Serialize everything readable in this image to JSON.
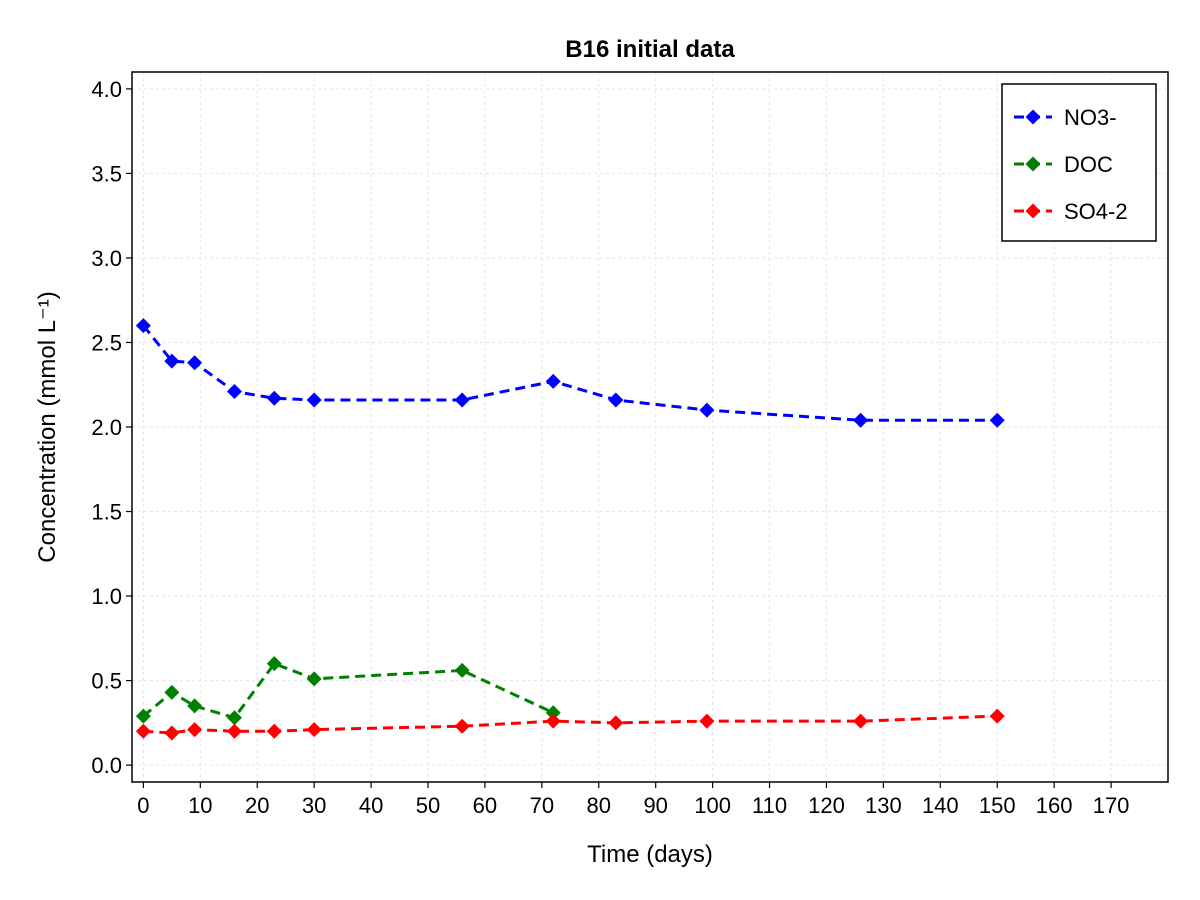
{
  "chart_data": {
    "type": "line",
    "title": "B16 initial data",
    "xlabel": "Time (days)",
    "ylabel": "Concentration (mmol L⁻¹)",
    "xlim": [
      -2,
      180
    ],
    "ylim": [
      -0.1,
      4.1
    ],
    "x_ticks": [
      0,
      10,
      20,
      30,
      40,
      50,
      60,
      70,
      80,
      90,
      100,
      110,
      120,
      130,
      140,
      150,
      160,
      170
    ],
    "y_ticks": [
      0.0,
      0.5,
      1.0,
      1.5,
      2.0,
      2.5,
      3.0,
      3.5,
      4.0
    ],
    "y_tick_labels": [
      "0.0",
      "0.5",
      "1.0",
      "1.5",
      "2.0",
      "2.5",
      "3.0",
      "3.5",
      "4.0"
    ],
    "grid": true,
    "legend_position": "top-right",
    "series": [
      {
        "name": "NO3-",
        "color": "#0000ff",
        "marker": "diamond",
        "line_style": "dashed",
        "x": [
          0,
          5,
          9,
          16,
          23,
          30,
          56,
          72,
          83,
          99,
          126,
          150
        ],
        "y": [
          2.6,
          2.39,
          2.38,
          2.21,
          2.17,
          2.16,
          2.16,
          2.27,
          2.16,
          2.1,
          2.04,
          2.04
        ]
      },
      {
        "name": "DOC",
        "color": "#008000",
        "marker": "diamond",
        "line_style": "dashed",
        "x": [
          0,
          5,
          9,
          16,
          23,
          30,
          56,
          72
        ],
        "y": [
          0.29,
          0.43,
          0.35,
          0.28,
          0.6,
          0.51,
          0.56,
          0.31
        ]
      },
      {
        "name": "SO4-2",
        "color": "#ff0000",
        "marker": "diamond",
        "line_style": "dashed",
        "x": [
          0,
          5,
          9,
          16,
          23,
          30,
          56,
          72,
          83,
          99,
          126,
          150
        ],
        "y": [
          0.2,
          0.19,
          0.21,
          0.2,
          0.2,
          0.21,
          0.23,
          0.26,
          0.25,
          0.26,
          0.26,
          0.29
        ]
      }
    ]
  }
}
